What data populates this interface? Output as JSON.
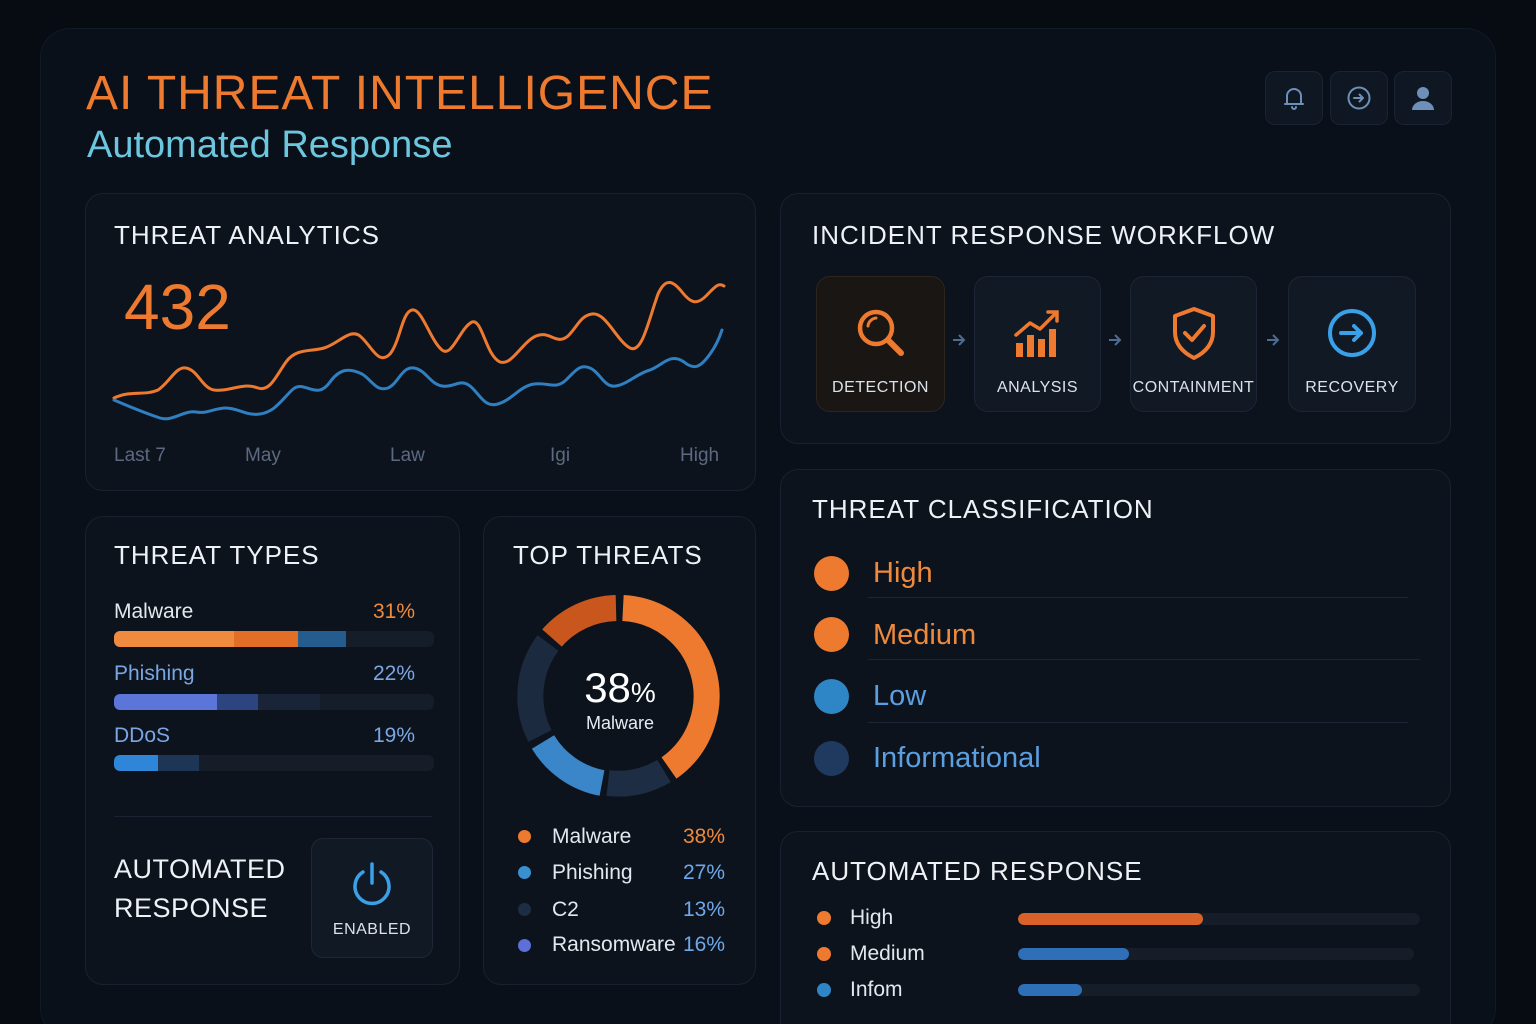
{
  "header": {
    "title": "AI THREAT INTELLIGENCE",
    "subtitle": "Automated Response",
    "buttons": [
      {
        "icon": "bell-icon"
      },
      {
        "icon": "arrow-circle-icon"
      },
      {
        "icon": "user-icon"
      }
    ]
  },
  "threat_analytics": {
    "title": "THREAT ANALYTICS",
    "value": "432",
    "x_labels": [
      "Last 7",
      "May",
      "Law",
      "Igi",
      "High"
    ],
    "colors": {
      "series_a": "#ee7a30",
      "series_b": "#2f7fc1"
    }
  },
  "workflow": {
    "title": "INCIDENT RESPONSE WORKFLOW",
    "steps": [
      {
        "label": "DETECTION",
        "icon": "magnifier-icon"
      },
      {
        "label": "ANALYSIS",
        "icon": "bar-chart-icon"
      },
      {
        "label": "CONTAINMENT",
        "icon": "shield-check-icon"
      },
      {
        "label": "RECOVERY",
        "icon": "arrow-circle-icon"
      }
    ]
  },
  "threat_types": {
    "title": "THREAT TYPES",
    "items": [
      {
        "name": "Malware",
        "pct": "31%",
        "value": 31,
        "color": "#ee8a3c"
      },
      {
        "name": "Phishing",
        "pct": "22%",
        "value": 22,
        "color": "#5b7fe0"
      },
      {
        "name": "DDoS",
        "pct": "19%",
        "value": 19,
        "color": "#3b8fe0"
      }
    ]
  },
  "auto_toggle": {
    "label": "AUTOMATED RESPONSE",
    "state": "ENABLED",
    "icon": "power-icon"
  },
  "top_threats": {
    "title": "TOP THREATS",
    "center_value": "38",
    "center_unit": "%",
    "center_label": "Malware",
    "legend": [
      {
        "name": "Malware",
        "value": "38%",
        "color": "#ee7a30"
      },
      {
        "name": "Phishing",
        "value": "27%",
        "color": "#3a8fd0"
      },
      {
        "name": "C2",
        "value": "13%",
        "color": "#1d2d44"
      },
      {
        "name": "Ransomware",
        "value": "16%",
        "color": "#5d6fd8"
      }
    ]
  },
  "classification": {
    "title": "THREAT CLASSIFICATION",
    "items": [
      {
        "name": "High",
        "color": "#ee7a30"
      },
      {
        "name": "Medium",
        "color": "#ee7a30"
      },
      {
        "name": "Low",
        "color": "#2f86c6"
      },
      {
        "name": "Informational",
        "color": "#1f3a5e"
      }
    ]
  },
  "automated_response": {
    "title": "AUTOMATED RESPONSE",
    "items": [
      {
        "name": "High",
        "level": 0.46,
        "color": "#d9622a",
        "dot": "#ee7a30"
      },
      {
        "name": "Medium",
        "level": 0.28,
        "color": "#2f6fb8",
        "dot": "#ee7a30"
      },
      {
        "name": "Infom",
        "level": 0.16,
        "color": "#2f6fb8",
        "dot": "#2f86c6"
      }
    ]
  }
}
